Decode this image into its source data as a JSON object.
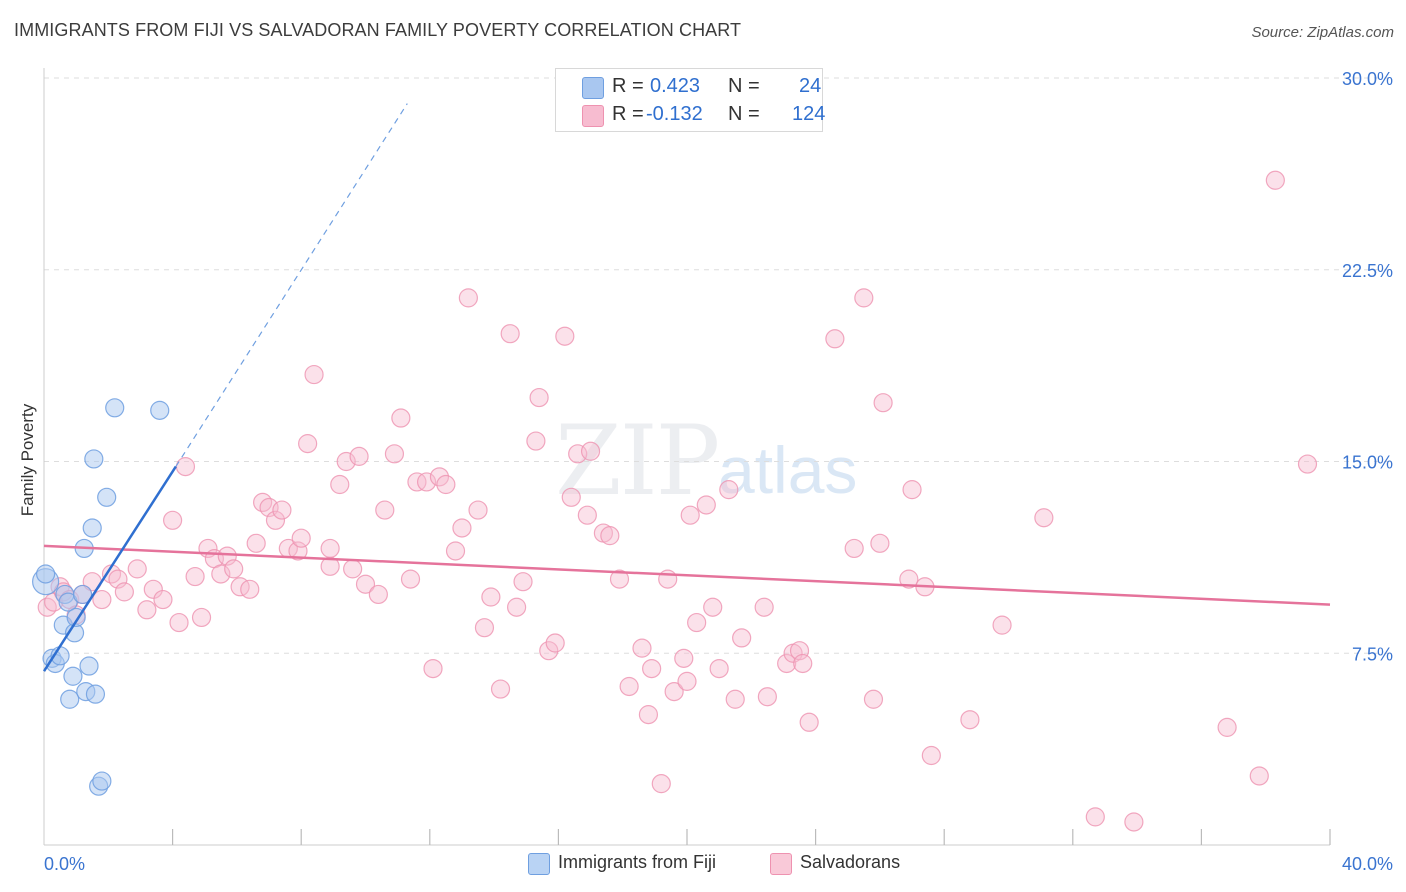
{
  "title": "IMMIGRANTS FROM FIJI VS SALVADORAN FAMILY POVERTY CORRELATION CHART",
  "source": "Source: ZipAtlas.com",
  "watermark": {
    "part1": "ZIP",
    "part2": "atlas"
  },
  "legend": {
    "rows": [
      {
        "r_label": "R =",
        "r_value": "0.423",
        "n_label": "N =",
        "n_value": "24",
        "color": "#a9c7f0",
        "stroke": "#6f9fe0"
      },
      {
        "r_label": "R =",
        "r_value": "-0.132",
        "n_label": "N =",
        "n_value": "124",
        "color": "#f7bcd0",
        "stroke": "#ee92b0"
      }
    ]
  },
  "bottom_legend": [
    {
      "label": "Immigrants from Fiji",
      "color": "#b9d3f4",
      "stroke": "#6f9fe0"
    },
    {
      "label": "Salvadorans",
      "color": "#f9c9d8",
      "stroke": "#ee92b0"
    }
  ],
  "chart_data": {
    "type": "scatter",
    "title": "IMMIGRANTS FROM FIJI VS SALVADORAN FAMILY POVERTY CORRELATION CHART",
    "xlabel": "",
    "ylabel": "Family Poverty",
    "xlim": [
      0,
      40
    ],
    "ylim": [
      0,
      30
    ],
    "x_tick_labels": [
      "0.0%",
      "40.0%"
    ],
    "y_ticks": [
      7.5,
      15.0,
      22.5,
      30.0
    ],
    "y_tick_labels": [
      "7.5%",
      "15.0%",
      "22.5%",
      "30.0%"
    ],
    "grid": true,
    "series": [
      {
        "name": "Immigrants from Fiji",
        "color": "#6f9fe0",
        "fill": "#a9c7f0",
        "trend": {
          "x": [
            0,
            4.1
          ],
          "y": [
            6.8,
            14.8
          ],
          "dashed_extension_to": [
            11.3,
            29.0
          ]
        },
        "points": [
          [
            0.05,
            10.3
          ],
          [
            0.25,
            7.3
          ],
          [
            0.35,
            7.1
          ],
          [
            0.5,
            7.4
          ],
          [
            0.6,
            8.6
          ],
          [
            0.65,
            9.8
          ],
          [
            0.75,
            9.5
          ],
          [
            0.8,
            5.7
          ],
          [
            0.9,
            6.6
          ],
          [
            0.95,
            8.3
          ],
          [
            1.0,
            8.9
          ],
          [
            1.2,
            9.8
          ],
          [
            1.25,
            11.6
          ],
          [
            1.3,
            6.0
          ],
          [
            1.4,
            7.0
          ],
          [
            1.5,
            12.4
          ],
          [
            1.6,
            5.9
          ],
          [
            1.55,
            15.1
          ],
          [
            1.7,
            2.3
          ],
          [
            1.8,
            2.5
          ],
          [
            1.95,
            13.6
          ],
          [
            2.2,
            17.1
          ],
          [
            3.6,
            17.0
          ],
          [
            0.05,
            10.6
          ]
        ]
      },
      {
        "name": "Salvadorans",
        "color": "#e5739b",
        "fill": "#f7bcd0",
        "trend": {
          "x": [
            0,
            40
          ],
          "y": [
            11.7,
            9.4
          ]
        },
        "points": [
          [
            0.1,
            9.3
          ],
          [
            0.3,
            9.5
          ],
          [
            0.5,
            10.1
          ],
          [
            0.6,
            9.9
          ],
          [
            0.8,
            9.6
          ],
          [
            1.0,
            9.0
          ],
          [
            1.2,
            9.8
          ],
          [
            1.5,
            10.3
          ],
          [
            1.8,
            9.6
          ],
          [
            2.1,
            10.6
          ],
          [
            2.3,
            10.4
          ],
          [
            2.5,
            9.9
          ],
          [
            2.9,
            10.8
          ],
          [
            3.2,
            9.2
          ],
          [
            3.4,
            10.0
          ],
          [
            3.7,
            9.6
          ],
          [
            4.0,
            12.7
          ],
          [
            4.2,
            8.7
          ],
          [
            4.4,
            14.8
          ],
          [
            4.7,
            10.5
          ],
          [
            4.9,
            8.9
          ],
          [
            5.1,
            11.6
          ],
          [
            5.3,
            11.2
          ],
          [
            5.5,
            10.6
          ],
          [
            5.7,
            11.3
          ],
          [
            5.9,
            10.8
          ],
          [
            6.1,
            10.1
          ],
          [
            6.4,
            10.0
          ],
          [
            6.6,
            11.8
          ],
          [
            6.8,
            13.4
          ],
          [
            7.0,
            13.2
          ],
          [
            7.2,
            12.7
          ],
          [
            7.4,
            13.1
          ],
          [
            7.6,
            11.6
          ],
          [
            7.9,
            11.5
          ],
          [
            8.0,
            12.0
          ],
          [
            8.2,
            15.7
          ],
          [
            8.4,
            18.4
          ],
          [
            8.9,
            11.6
          ],
          [
            9.2,
            14.1
          ],
          [
            9.4,
            15.0
          ],
          [
            9.6,
            10.8
          ],
          [
            9.8,
            15.2
          ],
          [
            10.0,
            10.2
          ],
          [
            10.4,
            9.8
          ],
          [
            10.6,
            13.1
          ],
          [
            10.9,
            15.3
          ],
          [
            11.1,
            16.7
          ],
          [
            11.4,
            10.4
          ],
          [
            11.6,
            14.2
          ],
          [
            11.9,
            14.2
          ],
          [
            12.1,
            6.9
          ],
          [
            12.3,
            14.4
          ],
          [
            12.5,
            14.1
          ],
          [
            12.8,
            11.5
          ],
          [
            13.0,
            12.4
          ],
          [
            13.2,
            21.4
          ],
          [
            13.5,
            13.1
          ],
          [
            13.7,
            8.5
          ],
          [
            13.9,
            9.7
          ],
          [
            14.2,
            6.1
          ],
          [
            14.5,
            20.0
          ],
          [
            14.7,
            9.3
          ],
          [
            14.9,
            10.3
          ],
          [
            15.3,
            15.8
          ],
          [
            15.4,
            17.5
          ],
          [
            15.7,
            7.6
          ],
          [
            15.9,
            7.9
          ],
          [
            16.2,
            19.9
          ],
          [
            16.4,
            13.6
          ],
          [
            16.6,
            15.3
          ],
          [
            16.9,
            12.9
          ],
          [
            17.0,
            15.4
          ],
          [
            17.4,
            12.2
          ],
          [
            17.6,
            12.1
          ],
          [
            17.9,
            10.4
          ],
          [
            18.2,
            6.2
          ],
          [
            18.6,
            7.7
          ],
          [
            18.8,
            5.1
          ],
          [
            18.9,
            6.9
          ],
          [
            19.2,
            2.4
          ],
          [
            19.4,
            10.4
          ],
          [
            19.6,
            6.0
          ],
          [
            19.9,
            7.3
          ],
          [
            20.0,
            6.4
          ],
          [
            20.1,
            12.9
          ],
          [
            20.3,
            8.7
          ],
          [
            20.6,
            13.3
          ],
          [
            20.8,
            9.3
          ],
          [
            21.0,
            6.9
          ],
          [
            21.3,
            13.9
          ],
          [
            21.5,
            5.7
          ],
          [
            21.7,
            8.1
          ],
          [
            22.4,
            9.3
          ],
          [
            22.5,
            5.8
          ],
          [
            23.1,
            7.1
          ],
          [
            23.3,
            7.5
          ],
          [
            23.5,
            7.6
          ],
          [
            23.6,
            7.1
          ],
          [
            23.8,
            4.8
          ],
          [
            24.6,
            19.8
          ],
          [
            25.2,
            11.6
          ],
          [
            25.5,
            21.4
          ],
          [
            25.8,
            5.7
          ],
          [
            26.0,
            11.8
          ],
          [
            26.1,
            17.3
          ],
          [
            26.9,
            10.4
          ],
          [
            27.0,
            13.9
          ],
          [
            27.4,
            10.1
          ],
          [
            27.6,
            3.5
          ],
          [
            28.8,
            4.9
          ],
          [
            29.8,
            8.6
          ],
          [
            31.1,
            12.8
          ],
          [
            32.7,
            1.1
          ],
          [
            33.9,
            0.9
          ],
          [
            36.8,
            4.6
          ],
          [
            37.8,
            2.7
          ],
          [
            38.3,
            26.0
          ],
          [
            39.3,
            14.9
          ],
          [
            8.9,
            10.9
          ]
        ]
      }
    ]
  }
}
